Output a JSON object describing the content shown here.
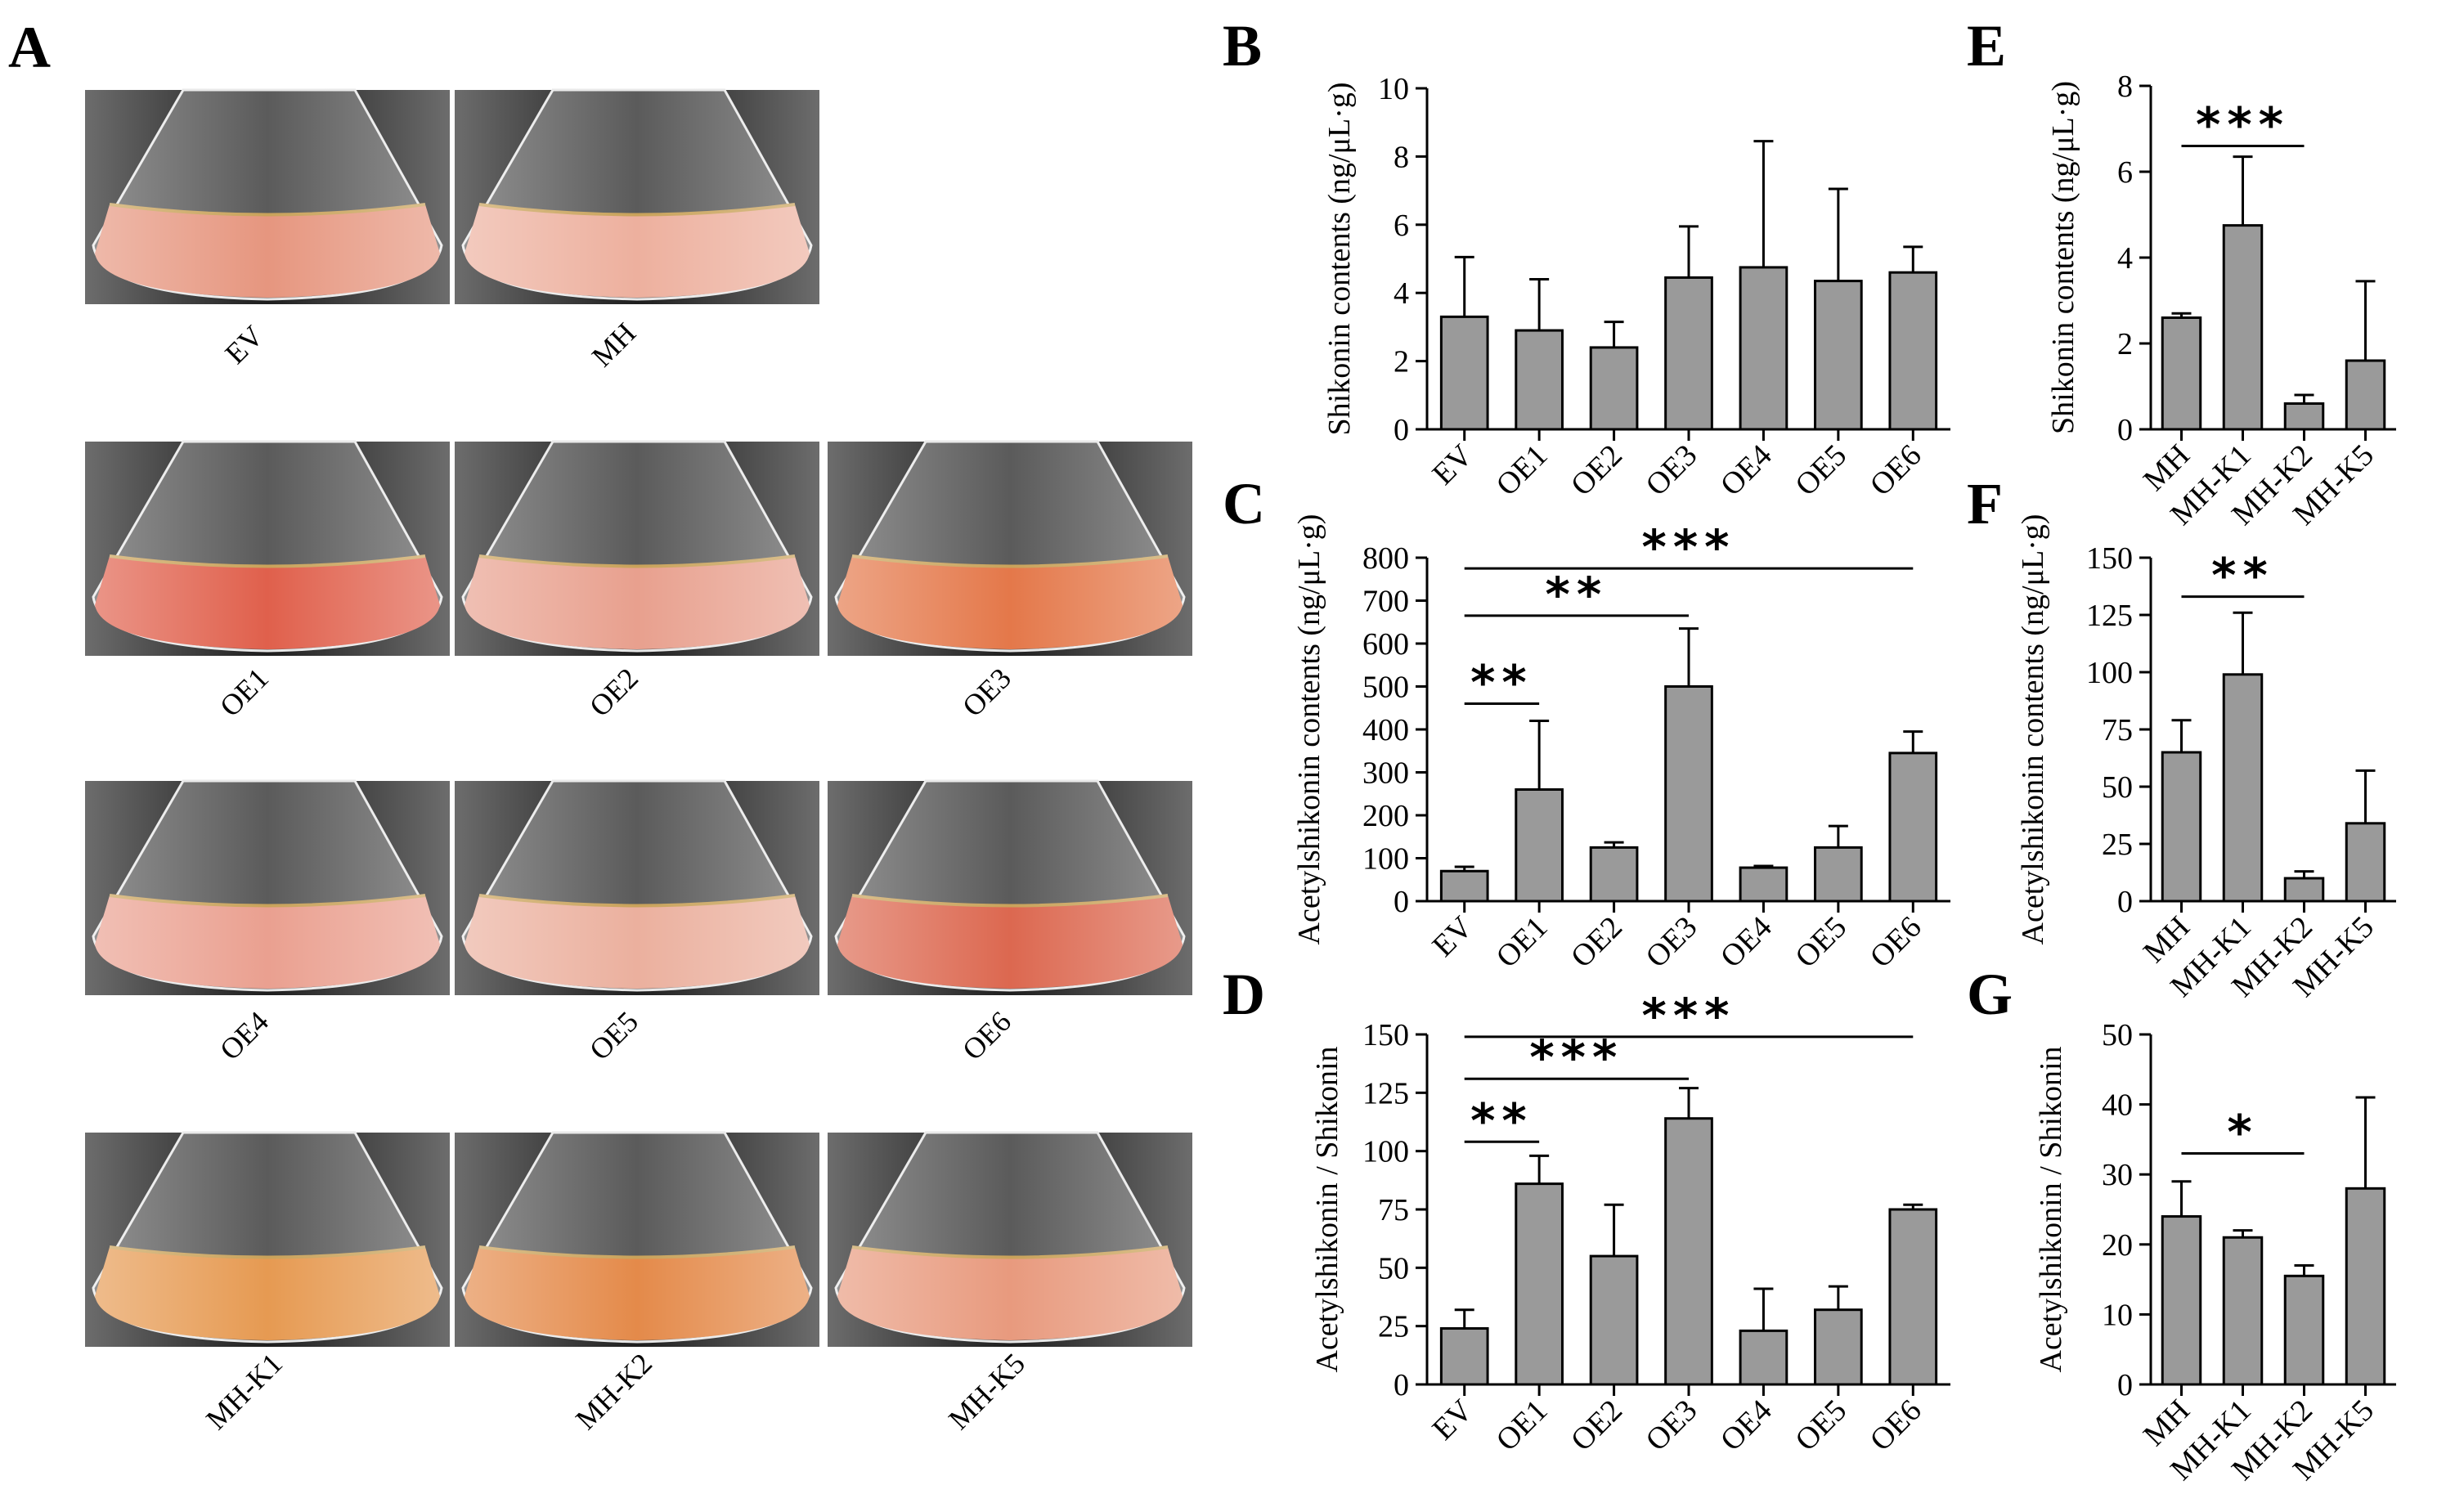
{
  "panel_letters": {
    "a": "A",
    "b": "B",
    "c": "C",
    "d": "D",
    "e": "E",
    "f": "F",
    "g": "G"
  },
  "photos": [
    {
      "label": "EV",
      "tint": "#e6967f"
    },
    {
      "label": "MH",
      "tint": "#edb09e"
    },
    {
      "label": "OE1",
      "tint": "#e0604c"
    },
    {
      "label": "OE2",
      "tint": "#e8a08e"
    },
    {
      "label": "OE3",
      "tint": "#e4784a"
    },
    {
      "label": "OE4",
      "tint": "#eaa090"
    },
    {
      "label": "OE5",
      "tint": "#ebb09e"
    },
    {
      "label": "OE6",
      "tint": "#dc6850"
    },
    {
      "label": "MH-K1",
      "tint": "#e69a52"
    },
    {
      "label": "MH-K2",
      "tint": "#e48a4a"
    },
    {
      "label": "MH-K5",
      "tint": "#e89a7e"
    }
  ],
  "colors": {
    "bar": "#9a9a9a",
    "background_dark": "#1e1e1e"
  },
  "chart_data": [
    {
      "id": "B",
      "type": "bar",
      "categories": [
        "EV",
        "OE1",
        "OE2",
        "OE3",
        "OE4",
        "OE5",
        "OE6"
      ],
      "values": [
        3.3,
        2.9,
        2.4,
        4.45,
        4.75,
        4.35,
        4.6
      ],
      "errors": [
        1.75,
        1.5,
        0.75,
        1.5,
        3.7,
        2.7,
        0.75
      ],
      "ylabel": "Shikonin contents (ng/μL·g)",
      "ylim": [
        0,
        10
      ],
      "yticks": [
        0,
        2,
        4,
        6,
        8,
        10
      ],
      "significance": []
    },
    {
      "id": "C",
      "type": "bar",
      "categories": [
        "EV",
        "OE1",
        "OE2",
        "OE3",
        "OE4",
        "OE5",
        "OE6"
      ],
      "values": [
        70,
        260,
        125,
        500,
        78,
        125,
        345
      ],
      "errors": [
        10,
        160,
        12,
        135,
        4,
        50,
        50
      ],
      "ylabel": "Acetylshikonin contents (ng/μL·g)",
      "ylim": [
        0,
        800
      ],
      "yticks": [
        0,
        100,
        200,
        300,
        400,
        500,
        600,
        700,
        800
      ],
      "significance": [
        {
          "from": "EV",
          "to": "OE1",
          "level": 460,
          "stars": "**"
        },
        {
          "from": "EV",
          "to": "OE3",
          "level": 665,
          "stars": "**"
        },
        {
          "from": "EV",
          "to": "OE6",
          "level": 775,
          "stars": "***"
        }
      ]
    },
    {
      "id": "D",
      "type": "bar",
      "categories": [
        "EV",
        "OE1",
        "OE2",
        "OE3",
        "OE4",
        "OE5",
        "OE6"
      ],
      "values": [
        24,
        86,
        55,
        114,
        23,
        32,
        75
      ],
      "errors": [
        8,
        12,
        22,
        13,
        18,
        10,
        2
      ],
      "ylabel": "Acetylshikonin / Shikonin",
      "ylim": [
        0,
        150
      ],
      "yticks": [
        0,
        25,
        50,
        75,
        100,
        125,
        150
      ],
      "significance": [
        {
          "from": "EV",
          "to": "OE1",
          "level": 104,
          "stars": "**"
        },
        {
          "from": "EV",
          "to": "OE3",
          "level": 131,
          "stars": "***"
        },
        {
          "from": "EV",
          "to": "OE6",
          "level": 149,
          "stars": "***"
        }
      ]
    },
    {
      "id": "E",
      "type": "bar",
      "categories": [
        "MH",
        "MH-K1",
        "MH-K2",
        "MH-K5"
      ],
      "values": [
        2.6,
        4.75,
        0.6,
        1.6
      ],
      "errors": [
        0.1,
        1.6,
        0.2,
        1.85
      ],
      "ylabel": "Shikonin contents (ng/μL·g)",
      "ylim": [
        0,
        8
      ],
      "yticks": [
        0,
        2,
        4,
        6,
        8
      ],
      "significance": [
        {
          "from": "MH",
          "to": "MH-K2",
          "level": 6.6,
          "stars": "***"
        }
      ]
    },
    {
      "id": "F",
      "type": "bar",
      "categories": [
        "MH",
        "MH-K1",
        "MH-K2",
        "MH-K5"
      ],
      "values": [
        65,
        99,
        10,
        34
      ],
      "errors": [
        14,
        27,
        3,
        23
      ],
      "ylabel": "Acetylshikonin contents (ng/μL·g)",
      "ylim": [
        0,
        150
      ],
      "yticks": [
        0,
        25,
        50,
        75,
        100,
        125,
        150
      ],
      "significance": [
        {
          "from": "MH",
          "to": "MH-K2",
          "level": 133,
          "stars": "**"
        }
      ]
    },
    {
      "id": "G",
      "type": "bar",
      "categories": [
        "MH",
        "MH-K1",
        "MH-K2",
        "MH-K5"
      ],
      "values": [
        24,
        21,
        15.5,
        28
      ],
      "errors": [
        5,
        1,
        1.5,
        13
      ],
      "ylabel": "Acetylshikonin / Shikonin",
      "ylim": [
        0,
        50
      ],
      "yticks": [
        0,
        10,
        20,
        30,
        40,
        50
      ],
      "significance": [
        {
          "from": "MH",
          "to": "MH-K2",
          "level": 33,
          "stars": "*"
        }
      ]
    }
  ]
}
